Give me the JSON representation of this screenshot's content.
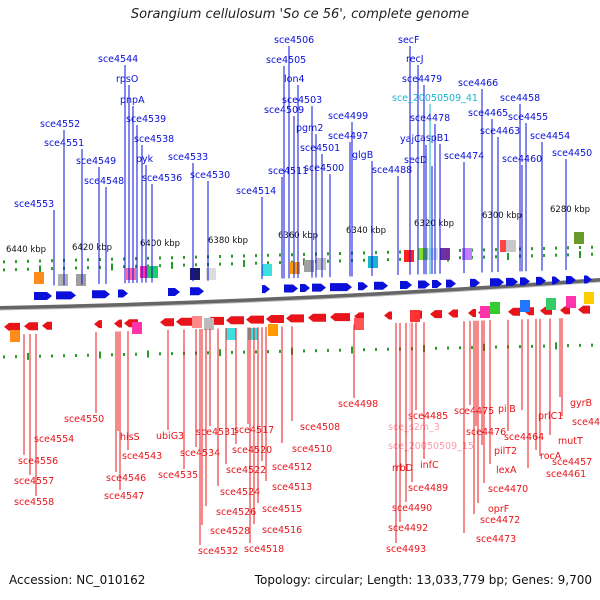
{
  "title": "Sorangium cellulosum 'So ce 56', complete genome",
  "accession_line": "Accession: NC_010162",
  "stats_line": "Topology: circular; Length: 13,033,779 bp; Genes: 9,700",
  "colors": {
    "forward": "#0a10d8",
    "reverse": "#e8141a",
    "misc": "#19b4d0",
    "backbone": "#666666",
    "tick": "#2a9a2a"
  },
  "ruler_labels": [
    "6440 kbp",
    "6420 kbp",
    "6400 kbp",
    "6380 kbp",
    "6360 kbp",
    "6340 kbp",
    "6320 kbp",
    "6300 kbp",
    "6280 kbp"
  ],
  "top_labels": [
    "sce4544",
    "rpsO",
    "pnpA",
    "sce4539",
    "sce4538",
    "pyk",
    "sce4536",
    "sce4552",
    "sce4551",
    "sce4549",
    "sce4548",
    "sce4553",
    "sce4533",
    "sce4530",
    "sce4506",
    "sce4505",
    "lon4",
    "sce4503",
    "sce4509",
    "pgm2",
    "sce4501",
    "sce4499",
    "sce4497",
    "sce4511",
    "sce4500",
    "sce4514",
    "glgB",
    "secF",
    "recJ",
    "sce4479",
    "sce_20050509_41",
    "sce4478",
    "yajC",
    "aspB1",
    "secD",
    "sce4474",
    "sce4488",
    "sce4466",
    "sce4465",
    "sce4463",
    "sce4458",
    "sce4455",
    "sce4454",
    "sce4460",
    "sce4450"
  ],
  "bottom_labels": [
    "sce4550",
    "sce4554",
    "sce4556",
    "sce4557",
    "sce4558",
    "hisS",
    "sce4543",
    "sce4546",
    "sce4547",
    "ubiG3",
    "sce4535",
    "sce4534",
    "sce4531",
    "sce4517",
    "sce4520",
    "sce4522",
    "sce4524",
    "sce4526",
    "sce4528",
    "sce4532",
    "sce4518",
    "sce4516",
    "sce4515",
    "sce4513",
    "sce4512",
    "sce4510",
    "sce4508",
    "sce4498",
    "sce4485",
    "sce_s2m_3",
    "sce_20050509_15",
    "infC",
    "rrbD",
    "sce4489",
    "sce4490",
    "sce4492",
    "sce4493",
    "sce4475",
    "pilB",
    "sce4476",
    "pilT2",
    "lexA",
    "sce4470",
    "oprF",
    "sce4472",
    "sce4473",
    "prlC1",
    "sce4464",
    "rocA",
    "gyrB",
    "sce4453",
    "mutT",
    "sce4457",
    "sce4461"
  ]
}
